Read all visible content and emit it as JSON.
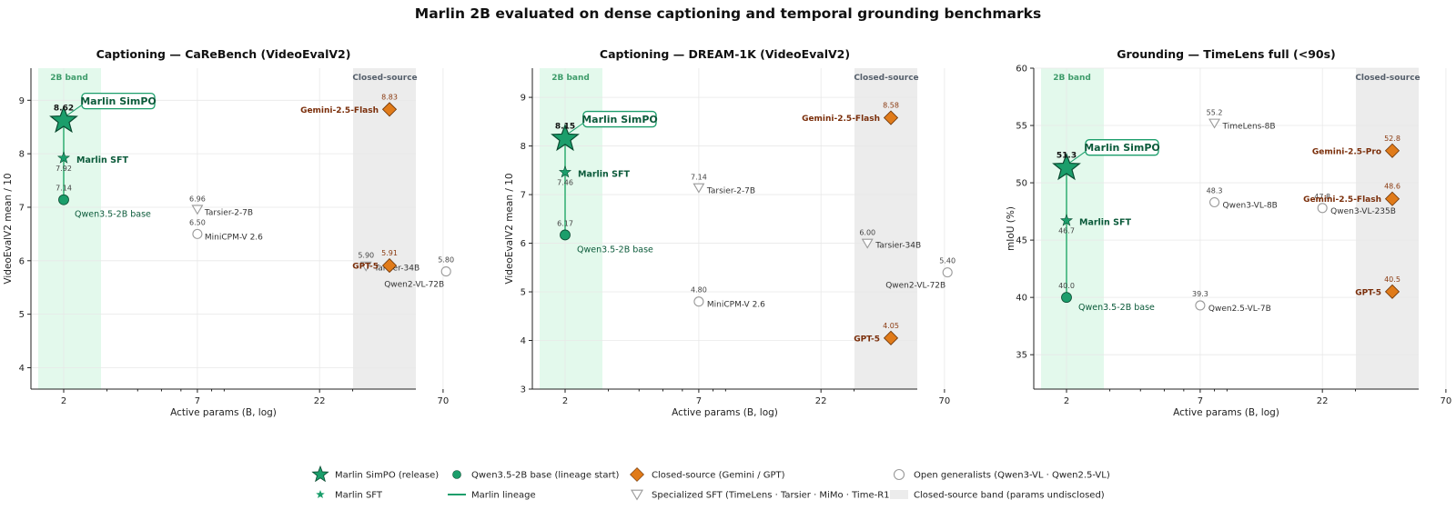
{
  "figure": {
    "suptitle": "Marlin 2B evaluated on dense captioning and temporal grounding benchmarks"
  },
  "colors": {
    "marlin": "#1b9e6b",
    "marlin_dark": "#0b5a3a",
    "closed": "#e07b1a",
    "closed_text": "#7a2e0a",
    "open": "#999999",
    "band_green": "#e3f9ec",
    "band_grey": "#ececec"
  },
  "bands": {
    "green_label": "2B band",
    "grey_label": "Closed-source"
  },
  "legend": [
    {
      "label": "Marlin SimPO (release)",
      "icon": "star-large-icon"
    },
    {
      "label": "Qwen3.5-2B base (lineage start)",
      "icon": "green-circle-icon"
    },
    {
      "label": "Closed-source (Gemini / GPT)",
      "icon": "orange-diamond-icon"
    },
    {
      "label": "Open generalists (Qwen3-VL · Qwen2.5-VL)",
      "icon": "grey-circle-icon"
    },
    {
      "label": "Marlin SFT",
      "icon": "star-small-icon"
    },
    {
      "label": "Marlin lineage",
      "icon": "green-line-icon"
    },
    {
      "label": "Specialized SFT (TimeLens · Tarsier · MiMo · Time-R1)",
      "icon": "grey-triangle-icon"
    },
    {
      "label": "Closed-source band (params undisclosed)",
      "icon": "grey-band-icon"
    }
  ],
  "chart_data": [
    {
      "type": "scatter",
      "title": "Captioning — CaReBench (VideoEvalV2)",
      "xlabel": "Active params (B, log)",
      "ylabel": "VideoEvalV2 mean / 10",
      "xscale": "log",
      "xticks": [
        "2",
        "7",
        "22",
        "70"
      ],
      "yticks": [
        "4",
        "5",
        "6",
        "7",
        "8",
        "9"
      ],
      "ylim": [
        3.6,
        9.6
      ],
      "points": [
        {
          "kind": "simpo",
          "x": 2,
          "y": 8.62,
          "value_label": "8.62",
          "name": "Marlin SimPO"
        },
        {
          "kind": "sft",
          "x": 2,
          "y": 7.92,
          "value_label": "7.92",
          "name": "Marlin SFT"
        },
        {
          "kind": "base",
          "x": 2,
          "y": 7.14,
          "value_label": "7.14",
          "name": "Qwen3.5-2B base"
        },
        {
          "kind": "special",
          "x": 7,
          "y": 6.96,
          "value_label": "6.96",
          "name": "Tarsier-2-7B"
        },
        {
          "kind": "open",
          "x": 7,
          "y": 6.5,
          "value_label": "6.50",
          "name": "MiniCPM-V 2.6"
        },
        {
          "kind": "special",
          "x": 34,
          "y": 5.9,
          "value_label": "5.90",
          "name": "Tarsier-34B"
        },
        {
          "kind": "open",
          "x": 72,
          "y": 5.8,
          "value_label": "5.80",
          "name": "Qwen2-VL-72B"
        },
        {
          "kind": "closed",
          "x": null,
          "y": 8.83,
          "value_label": "8.83",
          "name": "Gemini-2.5-Flash"
        },
        {
          "kind": "closed",
          "x": null,
          "y": 5.91,
          "value_label": "5.91",
          "name": "GPT-5"
        }
      ]
    },
    {
      "type": "scatter",
      "title": "Captioning — DREAM-1K (VideoEvalV2)",
      "xlabel": "Active params (B, log)",
      "ylabel": "VideoEvalV2 mean / 10",
      "xscale": "log",
      "xticks": [
        "2",
        "7",
        "22",
        "70"
      ],
      "yticks": [
        "3",
        "4",
        "5",
        "6",
        "7",
        "8",
        "9"
      ],
      "ylim": [
        3.0,
        9.6
      ],
      "points": [
        {
          "kind": "simpo",
          "x": 2,
          "y": 8.15,
          "value_label": "8.15",
          "name": "Marlin SimPO"
        },
        {
          "kind": "sft",
          "x": 2,
          "y": 7.46,
          "value_label": "7.46",
          "name": "Marlin SFT"
        },
        {
          "kind": "base",
          "x": 2,
          "y": 6.17,
          "value_label": "6.17",
          "name": "Qwen3.5-2B base"
        },
        {
          "kind": "special",
          "x": 7,
          "y": 7.14,
          "value_label": "7.14",
          "name": "Tarsier-2-7B"
        },
        {
          "kind": "open",
          "x": 7,
          "y": 4.8,
          "value_label": "4.80",
          "name": "MiniCPM-V 2.6"
        },
        {
          "kind": "special",
          "x": 34,
          "y": 6.0,
          "value_label": "6.00",
          "name": "Tarsier-34B"
        },
        {
          "kind": "open",
          "x": 72,
          "y": 5.4,
          "value_label": "5.40",
          "name": "Qwen2-VL-72B"
        },
        {
          "kind": "closed",
          "x": null,
          "y": 8.58,
          "value_label": "8.58",
          "name": "Gemini-2.5-Flash"
        },
        {
          "kind": "closed",
          "x": null,
          "y": 4.05,
          "value_label": "4.05",
          "name": "GPT-5"
        }
      ]
    },
    {
      "type": "scatter",
      "title": "Grounding — TimeLens full (<90s)",
      "xlabel": "Active params (B, log)",
      "ylabel": "mIoU (%)",
      "xscale": "log",
      "xticks": [
        "2",
        "7",
        "22",
        "70"
      ],
      "yticks": [
        "35",
        "40",
        "45",
        "50",
        "55",
        "60"
      ],
      "ylim": [
        32,
        60
      ],
      "points": [
        {
          "kind": "simpo",
          "x": 2,
          "y": 51.3,
          "value_label": "51.3",
          "name": "Marlin SimPO"
        },
        {
          "kind": "sft",
          "x": 2,
          "y": 46.7,
          "value_label": "46.7",
          "name": "Marlin SFT"
        },
        {
          "kind": "base",
          "x": 2,
          "y": 40.0,
          "value_label": "40.0",
          "name": "Qwen3.5-2B base"
        },
        {
          "kind": "special",
          "x": 8,
          "y": 55.2,
          "value_label": "55.2",
          "name": "TimeLens-8B"
        },
        {
          "kind": "open",
          "x": 8,
          "y": 48.3,
          "value_label": "48.3",
          "name": "Qwen3-VL-8B"
        },
        {
          "kind": "open",
          "x": 22,
          "y": 47.8,
          "value_label": "47.8",
          "name": "Qwen3-VL-235B"
        },
        {
          "kind": "open",
          "x": 7,
          "y": 39.3,
          "value_label": "39.3",
          "name": "Qwen2.5-VL-7B"
        },
        {
          "kind": "closed",
          "x": null,
          "y": 52.8,
          "value_label": "52.8",
          "name": "Gemini-2.5-Pro"
        },
        {
          "kind": "closed",
          "x": null,
          "y": 48.6,
          "value_label": "48.6",
          "name": "Gemini-2.5-Flash"
        },
        {
          "kind": "closed",
          "x": null,
          "y": 40.5,
          "value_label": "40.5",
          "name": "GPT-5"
        }
      ]
    }
  ]
}
